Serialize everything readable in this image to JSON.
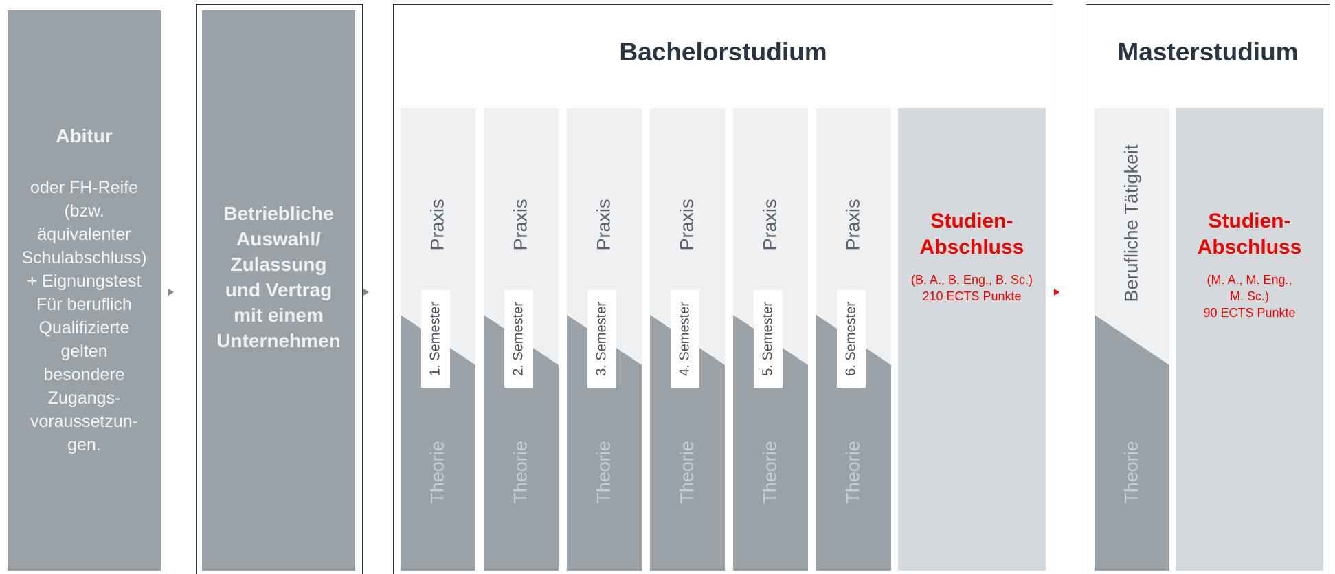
{
  "abitur": {
    "title": "Abitur",
    "lines": [
      "oder FH-Reife",
      "(bzw.",
      "äquivalenter",
      "Schulabschluss)",
      "+ Eignungstest",
      "Für beruflich",
      "Qualifizierte",
      "gelten",
      "besondere",
      "Zugangs-",
      "voraussetzun-",
      "gen."
    ]
  },
  "auswahl": {
    "lines": [
      "Betriebliche",
      "Auswahl/",
      "Zulassung",
      "und Vertrag",
      "mit einem",
      "Unternehmen"
    ]
  },
  "bachelor": {
    "title": "Bachelorstudium",
    "semesters": [
      {
        "praxis": "Praxis",
        "semester": "1. Semester",
        "theorie": "Theorie"
      },
      {
        "praxis": "Praxis",
        "semester": "2. Semester",
        "theorie": "Theorie"
      },
      {
        "praxis": "Praxis",
        "semester": "3. Semester",
        "theorie": "Theorie"
      },
      {
        "praxis": "Praxis",
        "semester": "4. Semester",
        "theorie": "Theorie"
      },
      {
        "praxis": "Praxis",
        "semester": "5. Semester",
        "theorie": "Theorie"
      },
      {
        "praxis": "Praxis",
        "semester": "6. Semester",
        "theorie": "Theorie"
      }
    ],
    "abschluss": {
      "heading": [
        "Studien-",
        "Abschluss"
      ],
      "details": [
        "(B. A., B. Eng., B. Sc.)",
        "210 ECTS Punkte"
      ]
    }
  },
  "master": {
    "title": "Masterstudium",
    "taetigkeit": "Berufliche Tätigkeit",
    "theorie": "Theorie",
    "abschluss": {
      "heading": [
        "Studien-",
        "Abschluss"
      ],
      "details": [
        "(M. A., M. Eng.,",
        "M. Sc.)",
        "90 ECTS Punkte"
      ]
    }
  },
  "colors": {
    "dark_gray": "#9aa2a8",
    "light_gray": "#eff0f1",
    "mid_gray": "#d4d9dc",
    "accent_red": "#ee0000",
    "frame": "#2b3541"
  }
}
